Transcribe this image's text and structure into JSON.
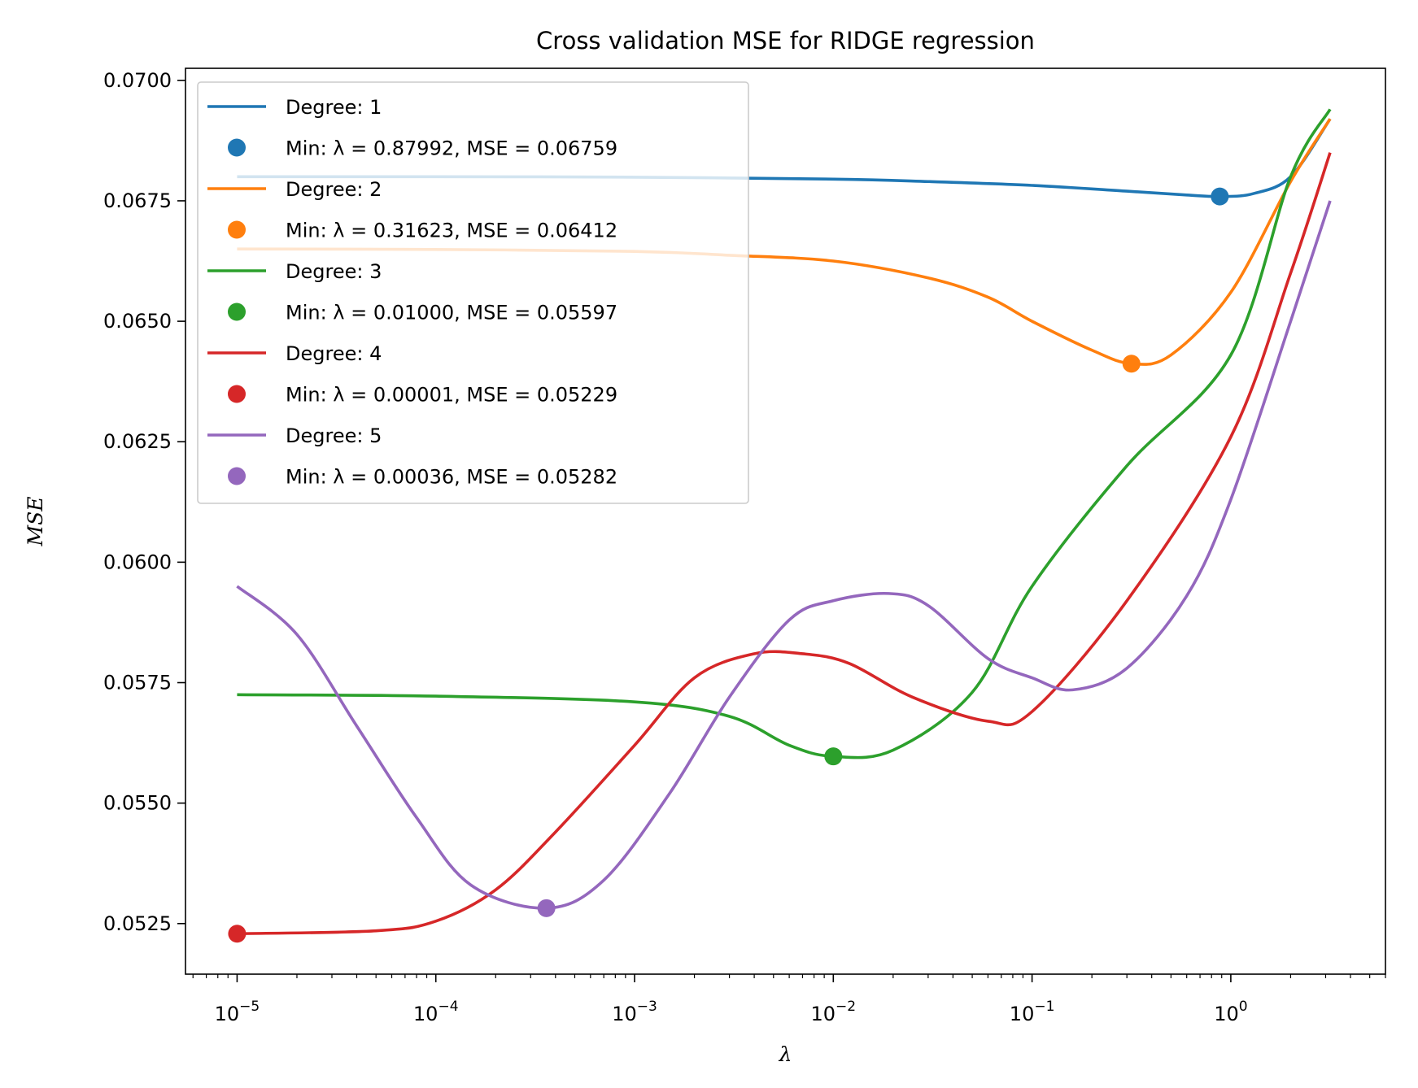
{
  "chart_data": {
    "type": "line",
    "title": "Cross validation MSE for RIDGE regression",
    "xlabel": "λ",
    "ylabel": "MSE",
    "xscale": "log",
    "xlim": [
      5.5e-06,
      6
    ],
    "ylim": [
      0.05145,
      0.07025
    ],
    "x_ticks": [
      1e-05,
      0.0001,
      0.001,
      0.01,
      0.1,
      1
    ],
    "x_tick_labels": [
      {
        "base": "10",
        "exp": "−5"
      },
      {
        "base": "10",
        "exp": "−4"
      },
      {
        "base": "10",
        "exp": "−3"
      },
      {
        "base": "10",
        "exp": "−2"
      },
      {
        "base": "10",
        "exp": "−1"
      },
      {
        "base": "10",
        "exp": "0"
      }
    ],
    "y_ticks": [
      0.0525,
      0.055,
      0.0575,
      0.06,
      0.0625,
      0.065,
      0.0675,
      0.07
    ],
    "y_tick_labels": [
      "0.0525",
      "0.0550",
      "0.0575",
      "0.0600",
      "0.0625",
      "0.0650",
      "0.0675",
      "0.0700"
    ],
    "grid": false,
    "legend_position": "upper-left",
    "series": [
      {
        "name": "Degree: 1",
        "color": "#1f77b4",
        "x": [
          1e-05,
          0.0001,
          0.001,
          0.01,
          0.03,
          0.1,
          0.3,
          0.6,
          0.88,
          1.3,
          2,
          3.16
        ],
        "y": [
          0.068,
          0.068,
          0.06799,
          0.06795,
          0.0679,
          0.06782,
          0.0677,
          0.06762,
          0.06759,
          0.06765,
          0.068,
          0.0692
        ],
        "min_label": "Min: λ = 0.87992, MSE = 0.06759",
        "min": {
          "x": 0.87992,
          "y": 0.06759
        }
      },
      {
        "name": "Degree: 2",
        "color": "#ff7f0e",
        "x": [
          1e-05,
          0.0001,
          0.001,
          0.003,
          0.01,
          0.03,
          0.06,
          0.1,
          0.2,
          0.316,
          0.5,
          1,
          2,
          3.16
        ],
        "y": [
          0.0665,
          0.06649,
          0.06645,
          0.06637,
          0.06625,
          0.0659,
          0.0655,
          0.065,
          0.0644,
          0.06412,
          0.0643,
          0.0656,
          0.0679,
          0.0692
        ],
        "min_label": "Min: λ = 0.31623, MSE = 0.06412",
        "min": {
          "x": 0.31623,
          "y": 0.06412
        }
      },
      {
        "name": "Degree: 3",
        "color": "#2ca02c",
        "x": [
          1e-05,
          0.0001,
          0.001,
          0.003,
          0.006,
          0.01,
          0.02,
          0.05,
          0.1,
          0.3,
          1,
          2,
          3.16
        ],
        "y": [
          0.05725,
          0.05722,
          0.0571,
          0.0568,
          0.0562,
          0.05597,
          0.0561,
          0.0573,
          0.0595,
          0.062,
          0.0643,
          0.068,
          0.0694
        ],
        "min_label": "Min: λ = 0.01000, MSE = 0.05597",
        "min": {
          "x": 0.01,
          "y": 0.05597
        }
      },
      {
        "name": "Degree: 4",
        "color": "#d62728",
        "x": [
          1e-05,
          5e-05,
          0.0001,
          0.0002,
          0.0004,
          0.001,
          0.002,
          0.004,
          0.007,
          0.012,
          0.025,
          0.06,
          0.1,
          0.3,
          1,
          2,
          3.16
        ],
        "y": [
          0.05229,
          0.05235,
          0.05255,
          0.0532,
          0.0544,
          0.0562,
          0.0576,
          0.0581,
          0.0581,
          0.0579,
          0.0572,
          0.0567,
          0.0569,
          0.0592,
          0.0626,
          0.066,
          0.0685
        ],
        "min_label": "Min: λ = 0.00001, MSE = 0.05229",
        "min": {
          "x": 1e-05,
          "y": 0.05229
        }
      },
      {
        "name": "Degree: 5",
        "color": "#9467bd",
        "x": [
          1e-05,
          2e-05,
          4e-05,
          8e-05,
          0.00015,
          0.00036,
          0.0007,
          0.0015,
          0.003,
          0.006,
          0.01,
          0.019,
          0.03,
          0.06,
          0.1,
          0.16,
          0.3,
          0.6,
          1,
          2,
          3.16
        ],
        "y": [
          0.0595,
          0.0585,
          0.0566,
          0.0547,
          0.0533,
          0.05282,
          0.0534,
          0.0552,
          0.0572,
          0.0588,
          0.0592,
          0.05935,
          0.0591,
          0.058,
          0.0576,
          0.05735,
          0.0578,
          0.0593,
          0.0613,
          0.065,
          0.0675
        ],
        "min_label": "Min: λ = 0.00036, MSE = 0.05282",
        "min": {
          "x": 0.00036,
          "y": 0.05282
        }
      }
    ]
  }
}
